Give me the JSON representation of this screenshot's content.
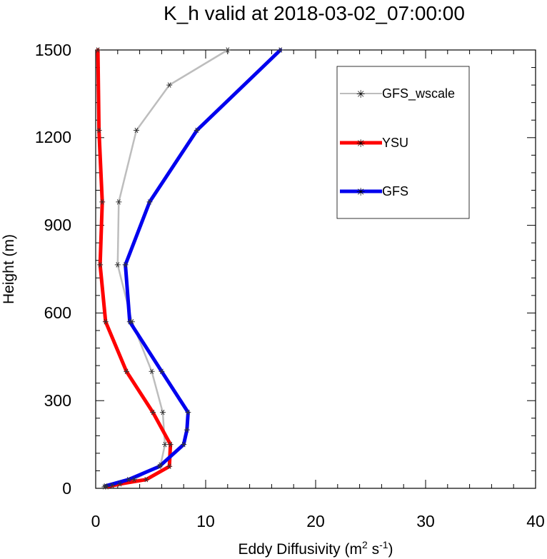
{
  "chart_data": {
    "type": "line",
    "title": "K_h valid at 2018-03-02_07:00:00",
    "xlabel": {
      "prefix": "Eddy Diffusivity (m",
      "sup1": "2",
      "middle": " s",
      "sup2": "-1",
      "suffix": ")"
    },
    "ylabel": "Height (m)",
    "xlim": [
      0,
      40
    ],
    "ylim": [
      0,
      1500
    ],
    "xticks": [
      "0",
      "10",
      "20",
      "30",
      "40"
    ],
    "yticks": [
      "0",
      "300",
      "600",
      "900",
      "1200",
      "1500"
    ],
    "legend_position": "top-right",
    "series": [
      {
        "name": "GFS_wscale",
        "color": "#bdbdbd",
        "marker": "asterisk",
        "x": [
          0.8,
          1.5,
          3.5,
          5.9,
          6.3,
          6.1,
          5.1,
          3.3,
          2.0,
          2.1,
          3.7,
          6.7,
          12.0
        ],
        "y": [
          5,
          10,
          30,
          80,
          150,
          260,
          400,
          570,
          765,
          980,
          1225,
          1380,
          1500
        ]
      },
      {
        "name": "YSU",
        "color": "#ff0000",
        "marker": "asterisk",
        "x": [
          1.0,
          2.2,
          4.6,
          6.7,
          6.8,
          5.2,
          2.8,
          0.9,
          0.4,
          0.6,
          0.3,
          0.2
        ],
        "y": [
          5,
          15,
          30,
          75,
          150,
          260,
          400,
          570,
          765,
          980,
          1225,
          1500
        ]
      },
      {
        "name": "GFS",
        "color": "#0000ee",
        "marker": "asterisk",
        "x": [
          0.9,
          3.0,
          5.8,
          8.0,
          8.3,
          8.4,
          6.0,
          3.1,
          2.7,
          4.9,
          9.2,
          16.8
        ],
        "y": [
          8,
          30,
          75,
          150,
          200,
          260,
          400,
          570,
          765,
          980,
          1225,
          1500
        ]
      }
    ]
  }
}
